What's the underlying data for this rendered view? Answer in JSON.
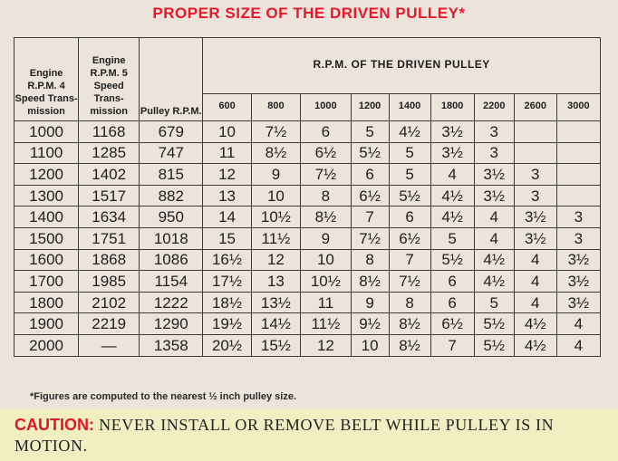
{
  "title": "PROPER SIZE OF THE DRIVEN PULLEY*",
  "headers": {
    "col1": "Engine R.P.M. 4 Speed Trans- mission",
    "col2": "Engine R.P.M. 5 Speed Trans- mission",
    "col3": "Pulley R.P.M.",
    "group": "R.P.M. OF THE DRIVEN PULLEY",
    "driven": [
      "600",
      "800",
      "1000",
      "1200",
      "1400",
      "1800",
      "2200",
      "2600",
      "3000"
    ]
  },
  "rows": [
    [
      "1000",
      "1168",
      "679",
      "10",
      "7½",
      "6",
      "5",
      "4½",
      "3½",
      "3",
      "",
      ""
    ],
    [
      "1100",
      "1285",
      "747",
      "11",
      "8½",
      "6½",
      "5½",
      "5",
      "3½",
      "3",
      "",
      ""
    ],
    [
      "1200",
      "1402",
      "815",
      "12",
      "9",
      "7½",
      "6",
      "5",
      "4",
      "3½",
      "3",
      ""
    ],
    [
      "1300",
      "1517",
      "882",
      "13",
      "10",
      "8",
      "6½",
      "5½",
      "4½",
      "3½",
      "3",
      ""
    ],
    [
      "1400",
      "1634",
      "950",
      "14",
      "10½",
      "8½",
      "7",
      "6",
      "4½",
      "4",
      "3½",
      "3"
    ],
    [
      "1500",
      "1751",
      "1018",
      "15",
      "11½",
      "9",
      "7½",
      "6½",
      "5",
      "4",
      "3½",
      "3"
    ],
    [
      "1600",
      "1868",
      "1086",
      "16½",
      "12",
      "10",
      "8",
      "7",
      "5½",
      "4½",
      "4",
      "3½"
    ],
    [
      "1700",
      "1985",
      "1154",
      "17½",
      "13",
      "10½",
      "8½",
      "7½",
      "6",
      "4½",
      "4",
      "3½"
    ],
    [
      "1800",
      "2102",
      "1222",
      "18½",
      "13½",
      "11",
      "9",
      "8",
      "6",
      "5",
      "4",
      "3½"
    ],
    [
      "1900",
      "2219",
      "1290",
      "19½",
      "14½",
      "11½",
      "9½",
      "8½",
      "6½",
      "5½",
      "4½",
      "4"
    ],
    [
      "2000",
      "—",
      "1358",
      "20½",
      "15½",
      "12",
      "10",
      "8½",
      "7",
      "5½",
      "4½",
      "4"
    ]
  ],
  "footnote": "*Figures are computed to the nearest ½ inch pulley size.",
  "caution": {
    "label": "CAUTION:",
    "text": " NEVER INSTALL OR REMOVE BELT WHILE PULLEY IS IN MOTION."
  }
}
